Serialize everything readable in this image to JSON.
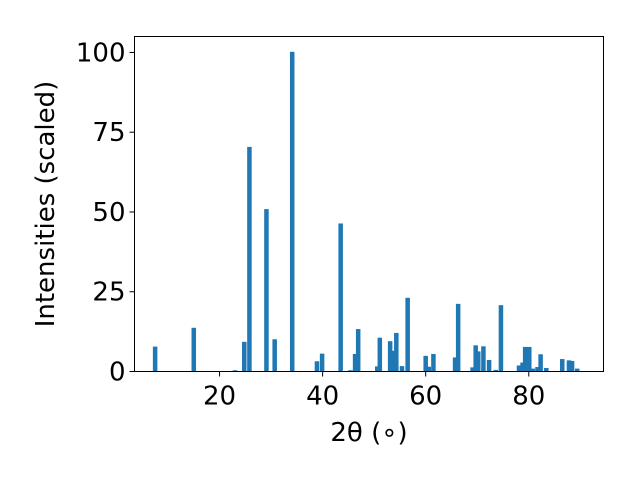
{
  "chart_data": {
    "type": "bar",
    "xlabel": "2θ (∘)",
    "ylabel": "Intensities (scaled)",
    "xlim": [
      3.5,
      94.5
    ],
    "ylim": [
      0,
      105
    ],
    "xticks": [
      20,
      40,
      60,
      80
    ],
    "yticks": [
      0,
      25,
      50,
      75,
      100
    ],
    "grid": false,
    "bar_color": "#1f77b4",
    "x": [
      7.5,
      15.0,
      23.0,
      24.8,
      25.8,
      29.1,
      30.7,
      34.1,
      38.9,
      39.9,
      43.5,
      45.4,
      46.3,
      46.9,
      50.6,
      51.1,
      53.1,
      53.7,
      54.3,
      55.4,
      56.5,
      60.0,
      60.6,
      61.5,
      65.7,
      66.3,
      69.1,
      69.7,
      70.2,
      71.2,
      72.3,
      73.6,
      74.6,
      78.1,
      78.8,
      79.3,
      80.1,
      80.8,
      81.7,
      82.3,
      83.4,
      86.5,
      87.8,
      88.4,
      89.4
    ],
    "values": [
      7.8,
      13.7,
      0.4,
      9.3,
      70.4,
      50.9,
      10.1,
      100.2,
      3.2,
      5.6,
      46.4,
      0.4,
      5.5,
      13.3,
      1.6,
      10.6,
      9.5,
      6.5,
      12.1,
      1.7,
      23.1,
      4.9,
      1.5,
      5.5,
      4.4,
      21.2,
      1.3,
      8.2,
      6.3,
      7.9,
      3.6,
      0.5,
      20.8,
      1.9,
      2.8,
      7.7,
      7.7,
      0.9,
      1.4,
      5.4,
      1.1,
      3.9,
      3.5,
      3.3,
      0.9
    ]
  }
}
